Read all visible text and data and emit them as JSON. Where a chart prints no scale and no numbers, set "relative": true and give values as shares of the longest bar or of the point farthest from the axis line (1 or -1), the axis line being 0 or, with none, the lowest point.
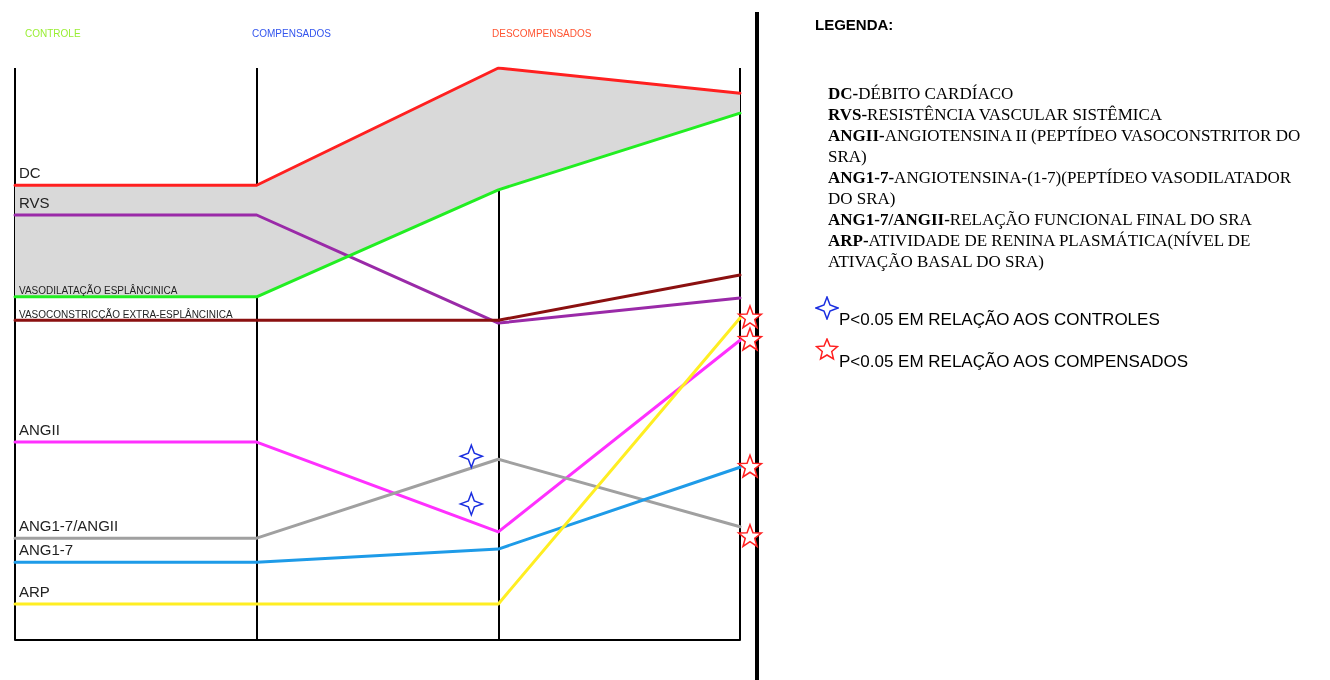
{
  "chart_data": {
    "type": "line",
    "relative": true,
    "categories": [
      null,
      null,
      null,
      null
    ],
    "grid": "x",
    "legend": false,
    "tick_labels": false,
    "marker": "none",
    "line_style": "solid",
    "series": [
      {
        "name": "DC",
        "color": "#ff2020",
        "values": [
          0.795,
          0.795,
          1.0,
          0.956
        ],
        "lower": [
          0.6,
          0.6,
          0.787,
          0.921
        ],
        "upper": [
          0.795,
          0.795,
          1.0,
          0.956
        ]
      },
      {
        "name": "RVS",
        "color": "#9a2aa8",
        "values": [
          0.743,
          0.743,
          0.554,
          0.598
        ]
      },
      {
        "name": "VASODILATAÇÃO ESPLÂNCINICA",
        "color": "#22ee22",
        "values": [
          0.6,
          0.6,
          0.787,
          0.921
        ]
      },
      {
        "name": "VASOCONSTRICÇÃO EXTRA-ESPLÂNCINICA",
        "color": "#8b1010",
        "values": [
          0.559,
          0.559,
          0.559,
          0.638
        ]
      },
      {
        "name": "ANGII",
        "color": "#ff30ff",
        "values": [
          0.346,
          0.346,
          0.189,
          0.524
        ]
      },
      {
        "name": "ANG1-7/ANGII",
        "color": "#a0a0a0",
        "values": [
          0.178,
          0.178,
          0.316,
          0.198
        ]
      },
      {
        "name": "ANG1-7",
        "color": "#1e9be8",
        "values": [
          0.136,
          0.136,
          0.159,
          0.302
        ]
      },
      {
        "name": "ARP",
        "color": "#ffee22",
        "values": [
          0.063,
          0.063,
          0.063,
          0.563
        ]
      }
    ],
    "annotations": [
      "CONTROLE",
      "COMPENSADOS",
      "DESCOMPENSADOS",
      "LEGENDA:",
      "DC-DÉBITO CARDÍACO",
      "RVS-RESISTÊNCIA VASCULAR SISTÊMICA",
      "ANGII-ANGIOTENSINA II (PEPTÍDEO VASOCONSTRITOR DO SRA)",
      "ANG1-7-ANGIOTENSINA-(1-7)(PEPTÍDEO VASODILATADOR DO SRA)",
      "ANG1-7/ANGII-RELAÇÃO FUNCIONAL FINAL DO SRA",
      "ARP-ATIVIDADE DE RENINA PLASMÁTICA(NÍVEL DE ATIVAÇÃO BASAL DO SRA)",
      "P<0.05 EM RELAÇÃO AOS CONTROLES",
      "P<0.05 EM RELAÇÃO AOS COMPENSADOS"
    ]
  }
}
